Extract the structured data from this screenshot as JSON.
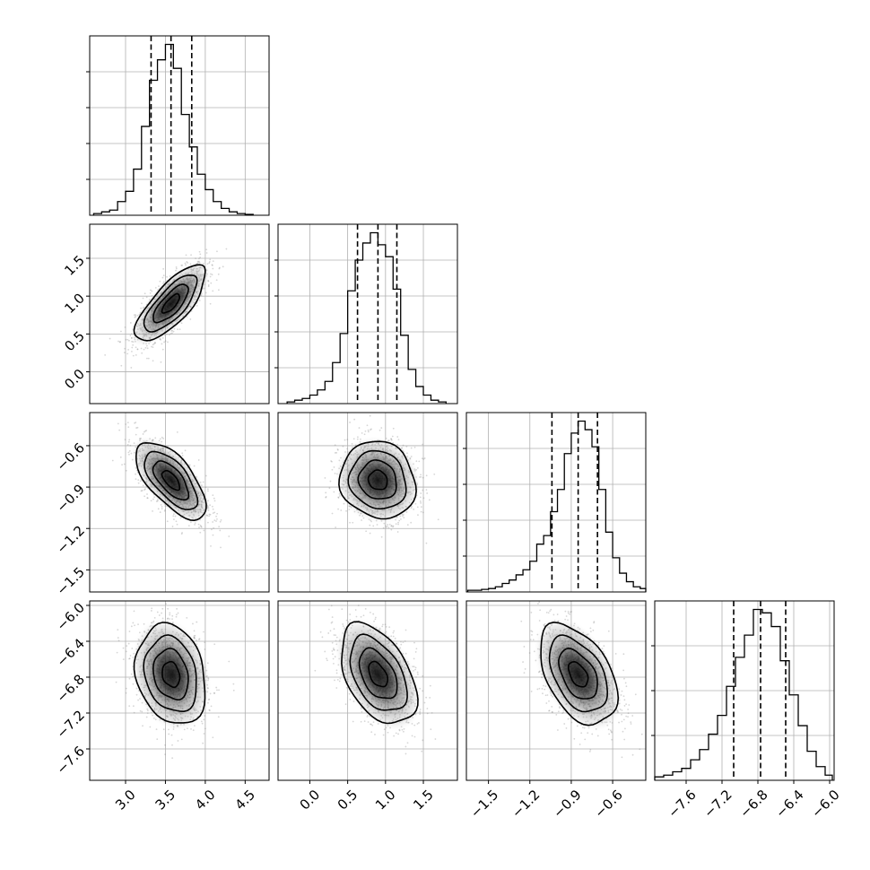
{
  "chart_data": {
    "type": "corner",
    "parameters": [
      {
        "ticks": [
          3.0,
          3.5,
          4.0,
          4.5
        ],
        "tick_labels": [
          "3.0",
          "3.5",
          "4.0",
          "4.5"
        ],
        "range": [
          2.55,
          4.8
        ],
        "quantiles": [
          3.32,
          3.57,
          3.83
        ],
        "hist_y_ticks": 4,
        "hist_edges": [
          2.6,
          2.7,
          2.8,
          2.9,
          3.0,
          3.1,
          3.2,
          3.3,
          3.4,
          3.5,
          3.6,
          3.7,
          3.8,
          3.9,
          4.0,
          4.1,
          4.2,
          4.3,
          4.4,
          4.5,
          4.6
        ],
        "hist_counts": [
          0.01,
          0.02,
          0.03,
          0.08,
          0.14,
          0.27,
          0.52,
          0.79,
          0.91,
          1.0,
          0.86,
          0.59,
          0.4,
          0.24,
          0.15,
          0.08,
          0.04,
          0.02,
          0.01,
          0.005
        ]
      },
      {
        "ticks": [
          0.0,
          0.5,
          1.0,
          1.5
        ],
        "tick_labels": [
          "0.0",
          "0.5",
          "1.0",
          "1.5"
        ],
        "range": [
          -0.42,
          1.95
        ],
        "quantiles": [
          0.63,
          0.9,
          1.15
        ],
        "hist_y_ticks": 4,
        "hist_edges": [
          -0.3,
          -0.2,
          -0.1,
          0.0,
          0.1,
          0.2,
          0.3,
          0.4,
          0.5,
          0.6,
          0.7,
          0.8,
          0.9,
          1.0,
          1.1,
          1.2,
          1.3,
          1.4,
          1.5,
          1.6,
          1.7,
          1.8
        ],
        "hist_counts": [
          0.01,
          0.02,
          0.03,
          0.05,
          0.08,
          0.13,
          0.24,
          0.41,
          0.66,
          0.84,
          0.94,
          1.0,
          0.93,
          0.86,
          0.67,
          0.4,
          0.2,
          0.1,
          0.05,
          0.02,
          0.01
        ]
      },
      {
        "ticks": [
          -1.5,
          -1.2,
          -0.9,
          -0.6
        ],
        "tick_labels": [
          "−1.5",
          "−1.2",
          "−0.9",
          "−0.6"
        ],
        "range": [
          -1.66,
          -0.36
        ],
        "quantiles": [
          -1.04,
          -0.85,
          -0.71
        ],
        "hist_y_ticks": 4,
        "hist_edges": [
          -1.65,
          -1.6,
          -1.55,
          -1.5,
          -1.45,
          -1.4,
          -1.35,
          -1.3,
          -1.25,
          -1.2,
          -1.15,
          -1.1,
          -1.05,
          -1.0,
          -0.95,
          -0.9,
          -0.85,
          -0.8,
          -0.75,
          -0.7,
          -0.65,
          -0.6,
          -0.55,
          -0.5,
          -0.45,
          -0.4,
          -0.36
        ],
        "hist_counts": [
          0.01,
          0.01,
          0.015,
          0.02,
          0.03,
          0.05,
          0.07,
          0.1,
          0.13,
          0.18,
          0.28,
          0.33,
          0.47,
          0.6,
          0.81,
          0.93,
          1.0,
          0.95,
          0.85,
          0.6,
          0.35,
          0.2,
          0.11,
          0.06,
          0.03,
          0.02
        ]
      },
      {
        "ticks": [
          -7.6,
          -7.2,
          -6.8,
          -6.4,
          -6.0
        ],
        "tick_labels": [
          "−7.6",
          "−7.2",
          "−6.8",
          "−6.4",
          "−6.0"
        ],
        "range": [
          -7.95,
          -5.95
        ],
        "quantiles": [
          -7.07,
          -6.77,
          -6.49
        ],
        "hist_y_ticks": 3,
        "hist_edges": [
          -7.95,
          -7.85,
          -7.75,
          -7.65,
          -7.55,
          -7.45,
          -7.35,
          -7.25,
          -7.15,
          -7.05,
          -6.95,
          -6.85,
          -6.75,
          -6.65,
          -6.55,
          -6.45,
          -6.35,
          -6.25,
          -6.15,
          -6.05,
          -5.97
        ],
        "hist_counts": [
          0.02,
          0.03,
          0.05,
          0.07,
          0.12,
          0.18,
          0.27,
          0.38,
          0.55,
          0.72,
          0.85,
          1.0,
          0.98,
          0.9,
          0.7,
          0.5,
          0.32,
          0.17,
          0.08,
          0.03
        ]
      }
    ],
    "pairs": [
      {
        "x": 0,
        "y": 1,
        "mean": [
          3.57,
          0.9
        ],
        "sd": [
          0.22,
          0.25
        ],
        "rho": 0.75
      },
      {
        "x": 0,
        "y": 2,
        "mean": [
          3.57,
          -0.85
        ],
        "sd": [
          0.22,
          0.14
        ],
        "rho": -0.65
      },
      {
        "x": 1,
        "y": 2,
        "mean": [
          0.9,
          -0.85
        ],
        "sd": [
          0.25,
          0.14
        ],
        "rho": -0.1
      },
      {
        "x": 0,
        "y": 3,
        "mean": [
          3.57,
          -6.77
        ],
        "sd": [
          0.22,
          0.28
        ],
        "rho": -0.2
      },
      {
        "x": 1,
        "y": 3,
        "mean": [
          0.9,
          -6.77
        ],
        "sd": [
          0.25,
          0.28
        ],
        "rho": -0.45
      },
      {
        "x": 2,
        "y": 3,
        "mean": [
          -0.85,
          -6.77
        ],
        "sd": [
          0.14,
          0.28
        ],
        "rho": -0.45
      }
    ],
    "contour_levels": [
      0.5,
      1.0,
      1.5,
      2.0
    ],
    "grid": true,
    "legend": "none"
  }
}
